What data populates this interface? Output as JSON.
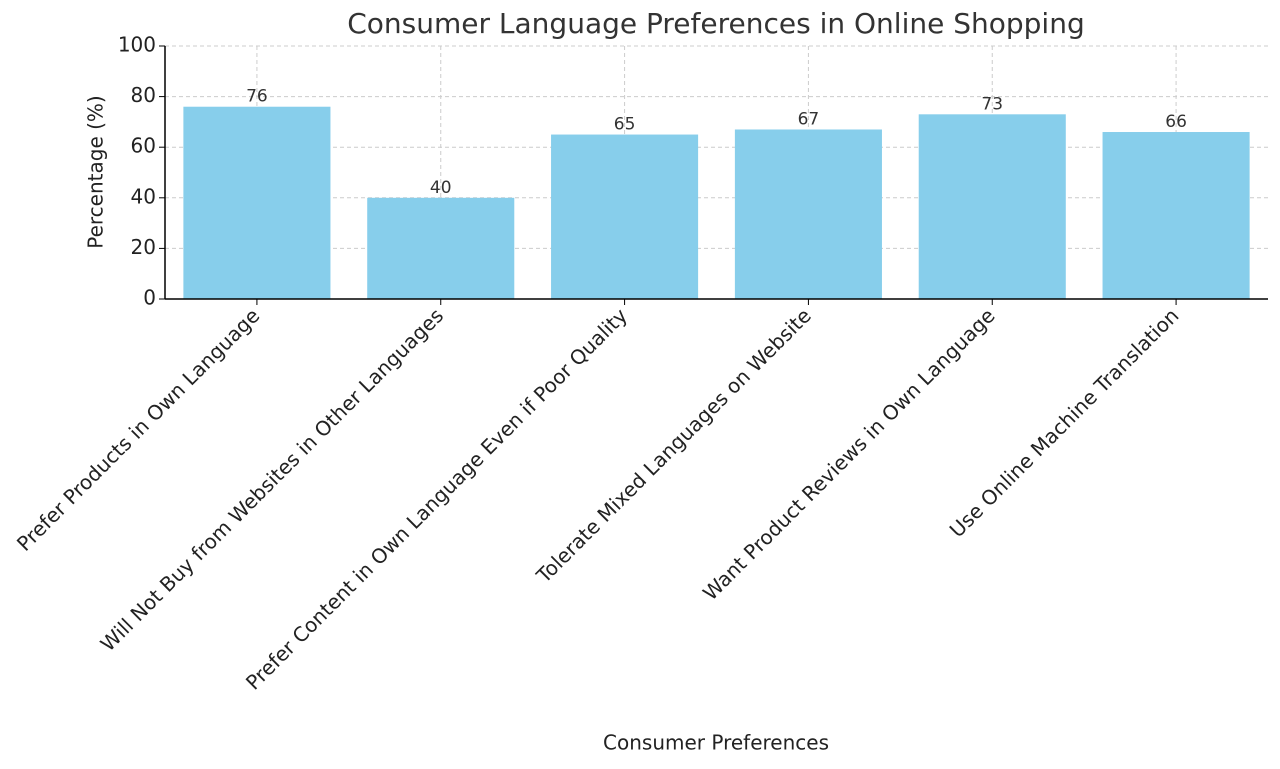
{
  "chart_data": {
    "type": "bar",
    "title": "Consumer Language Preferences in Online Shopping",
    "x_label": "Consumer Preferences",
    "y_label": "Percentage (%)",
    "categories": [
      "Prefer Products in Own Language",
      "Will Not Buy from Websites in Other Languages",
      "Prefer Content in Own Language Even if Poor Quality",
      "Tolerate Mixed Languages on Website",
      "Want Product Reviews in Own Language",
      "Use Online Machine Translation"
    ],
    "values": [
      76,
      40,
      65,
      67,
      73,
      66
    ],
    "color": "#87ceeb",
    "ylim": [
      0,
      100
    ],
    "yticks": [
      0,
      20,
      40,
      60,
      80,
      100
    ],
    "grid": true
  }
}
